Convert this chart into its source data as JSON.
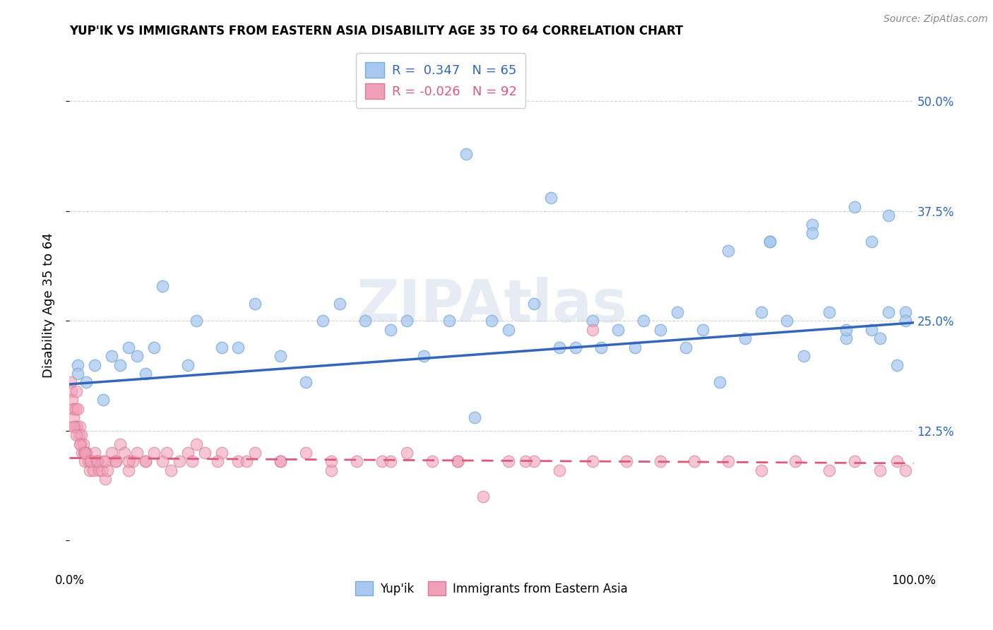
{
  "title": "YUP'IK VS IMMIGRANTS FROM EASTERN ASIA DISABILITY AGE 35 TO 64 CORRELATION CHART",
  "source": "Source: ZipAtlas.com",
  "ylabel": "Disability Age 35 to 64",
  "xlim": [
    0.0,
    1.0
  ],
  "ylim": [
    -0.03,
    0.565
  ],
  "yticks": [
    0.0,
    0.125,
    0.25,
    0.375,
    0.5
  ],
  "background_color": "#ffffff",
  "grid_color": "#c8c8c8",
  "blue_color": "#a8c8f0",
  "blue_edge_color": "#7aaad8",
  "blue_line_color": "#3366bb",
  "pink_color": "#f0a0b8",
  "pink_edge_color": "#d87898",
  "pink_line_color": "#e05878",
  "R_blue": 0.347,
  "N_blue": 65,
  "R_pink": -0.026,
  "N_pink": 92,
  "legend_label_blue": "Yup'ik",
  "legend_label_pink": "Immigrants from Eastern Asia",
  "blue_line_x0": 0.0,
  "blue_line_y0": 0.178,
  "blue_line_x1": 1.0,
  "blue_line_y1": 0.248,
  "pink_line_x0": 0.0,
  "pink_line_y0": 0.094,
  "pink_line_x1": 1.0,
  "pink_line_y1": 0.088,
  "blue_x": [
    0.01,
    0.01,
    0.02,
    0.03,
    0.04,
    0.05,
    0.06,
    0.07,
    0.08,
    0.09,
    0.1,
    0.11,
    0.14,
    0.15,
    0.18,
    0.2,
    0.22,
    0.25,
    0.28,
    0.3,
    0.32,
    0.35,
    0.38,
    0.4,
    0.42,
    0.45,
    0.47,
    0.48,
    0.5,
    0.52,
    0.55,
    0.57,
    0.58,
    0.6,
    0.62,
    0.63,
    0.65,
    0.67,
    0.68,
    0.7,
    0.72,
    0.73,
    0.75,
    0.77,
    0.78,
    0.8,
    0.82,
    0.83,
    0.85,
    0.87,
    0.88,
    0.9,
    0.92,
    0.93,
    0.95,
    0.96,
    0.97,
    0.98,
    0.99,
    0.99,
    0.97,
    0.95,
    0.92,
    0.88,
    0.83
  ],
  "blue_y": [
    0.2,
    0.19,
    0.18,
    0.2,
    0.16,
    0.21,
    0.2,
    0.22,
    0.21,
    0.19,
    0.22,
    0.29,
    0.2,
    0.25,
    0.22,
    0.22,
    0.27,
    0.21,
    0.18,
    0.25,
    0.27,
    0.25,
    0.24,
    0.25,
    0.21,
    0.25,
    0.44,
    0.14,
    0.25,
    0.24,
    0.27,
    0.39,
    0.22,
    0.22,
    0.25,
    0.22,
    0.24,
    0.22,
    0.25,
    0.24,
    0.26,
    0.22,
    0.24,
    0.18,
    0.33,
    0.23,
    0.26,
    0.34,
    0.25,
    0.21,
    0.36,
    0.26,
    0.23,
    0.38,
    0.24,
    0.23,
    0.26,
    0.2,
    0.26,
    0.25,
    0.37,
    0.34,
    0.24,
    0.35,
    0.34
  ],
  "pink_x": [
    0.001,
    0.002,
    0.003,
    0.004,
    0.005,
    0.006,
    0.007,
    0.008,
    0.009,
    0.01,
    0.011,
    0.012,
    0.013,
    0.014,
    0.015,
    0.016,
    0.017,
    0.018,
    0.019,
    0.02,
    0.022,
    0.024,
    0.026,
    0.028,
    0.03,
    0.032,
    0.035,
    0.038,
    0.04,
    0.042,
    0.045,
    0.05,
    0.055,
    0.06,
    0.065,
    0.07,
    0.075,
    0.08,
    0.09,
    0.1,
    0.11,
    0.12,
    0.13,
    0.14,
    0.15,
    0.16,
    0.18,
    0.2,
    0.22,
    0.25,
    0.28,
    0.31,
    0.34,
    0.37,
    0.4,
    0.43,
    0.46,
    0.49,
    0.52,
    0.55,
    0.58,
    0.62,
    0.66,
    0.7,
    0.74,
    0.78,
    0.82,
    0.86,
    0.9,
    0.93,
    0.96,
    0.98,
    0.99,
    0.005,
    0.008,
    0.012,
    0.018,
    0.025,
    0.033,
    0.042,
    0.055,
    0.07,
    0.09,
    0.115,
    0.145,
    0.175,
    0.21,
    0.25,
    0.31,
    0.38,
    0.46,
    0.54,
    0.62
  ],
  "pink_y": [
    0.18,
    0.17,
    0.16,
    0.15,
    0.14,
    0.13,
    0.15,
    0.17,
    0.13,
    0.15,
    0.12,
    0.13,
    0.11,
    0.12,
    0.1,
    0.11,
    0.1,
    0.09,
    0.1,
    0.1,
    0.09,
    0.08,
    0.09,
    0.08,
    0.1,
    0.09,
    0.08,
    0.08,
    0.09,
    0.07,
    0.08,
    0.1,
    0.09,
    0.11,
    0.1,
    0.08,
    0.09,
    0.1,
    0.09,
    0.1,
    0.09,
    0.08,
    0.09,
    0.1,
    0.11,
    0.1,
    0.1,
    0.09,
    0.1,
    0.09,
    0.1,
    0.08,
    0.09,
    0.09,
    0.1,
    0.09,
    0.09,
    0.05,
    0.09,
    0.09,
    0.08,
    0.09,
    0.09,
    0.09,
    0.09,
    0.09,
    0.08,
    0.09,
    0.08,
    0.09,
    0.08,
    0.09,
    0.08,
    0.13,
    0.12,
    0.11,
    0.1,
    0.09,
    0.09,
    0.09,
    0.09,
    0.09,
    0.09,
    0.1,
    0.09,
    0.09,
    0.09,
    0.09,
    0.09,
    0.09,
    0.09,
    0.09,
    0.24
  ]
}
